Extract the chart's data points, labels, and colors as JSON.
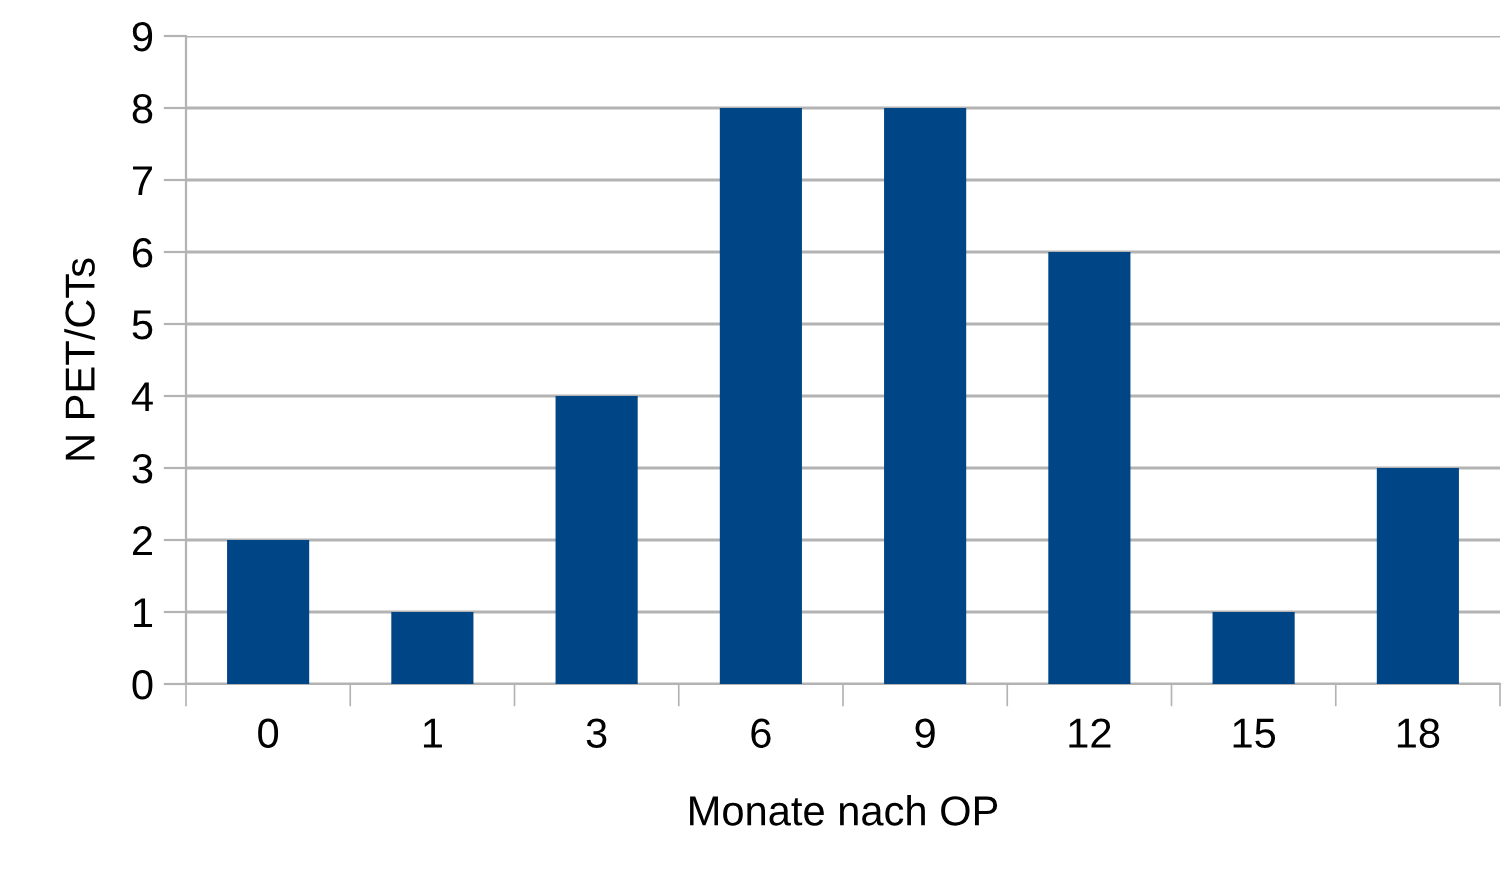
{
  "chart_data": {
    "type": "bar",
    "xlabel": "Monate nach OP",
    "ylabel": "N PET/CTs",
    "categories": [
      "0",
      "1",
      "3",
      "6",
      "9",
      "12",
      "15",
      "18"
    ],
    "values": [
      2,
      1,
      4,
      8,
      8,
      6,
      1,
      3
    ],
    "color": "#004586",
    "ylim": [
      0,
      9
    ],
    "yticks": [
      0,
      1,
      2,
      3,
      4,
      5,
      6,
      7,
      8,
      9
    ],
    "grid": "y"
  }
}
